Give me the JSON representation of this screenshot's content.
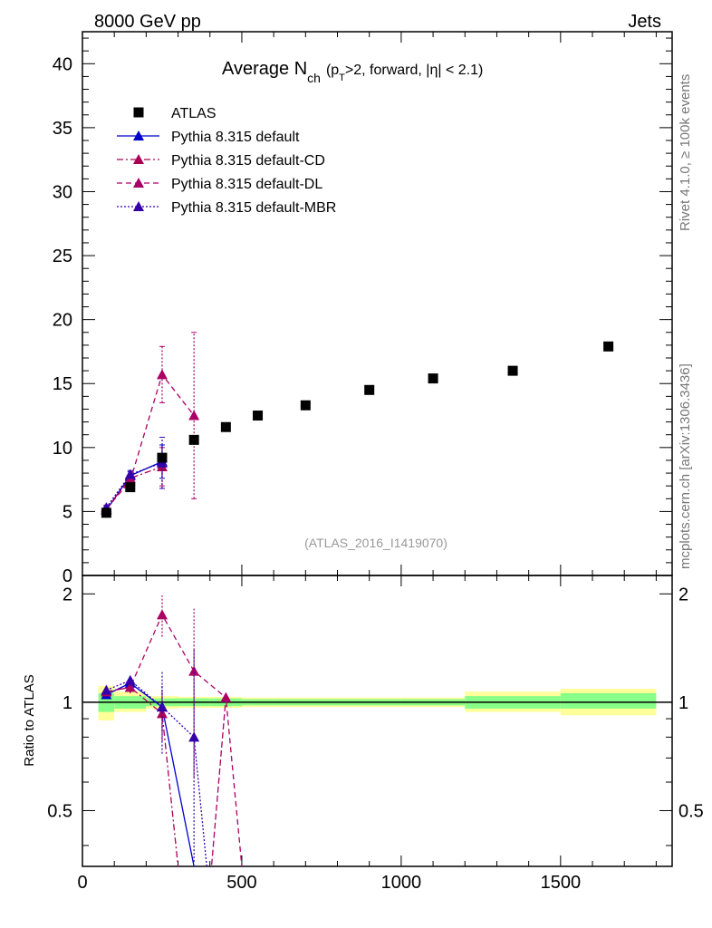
{
  "header": {
    "energy_label": "8000 GeV pp",
    "process_label": "Jets",
    "rivet_label": "Rivet 4.1.0, ≥ 100k events",
    "source_label": "mcplots.cern.ch [arXiv:1306.3436]"
  },
  "colors": {
    "atlas": "#000000",
    "default": "#0000cc",
    "cd": "#aa0055",
    "dl": "#aa0066",
    "mbr": "#3300aa",
    "band_inner": "#88ff88",
    "band_outer": "#ffff99"
  },
  "chart_data": {
    "type": "scatter",
    "title": "Average N_ch (p_T>2, forward, |η| < 2.1)",
    "title_main": "Average N",
    "title_sub_ch": "ch",
    "title_p": "(p",
    "title_sub_T": "T",
    "title_rest": ">2, forward, |η| < 2.1)",
    "analysis_id": "(ATLAS_2016_I1419070)",
    "xlabel": "",
    "ylabel_main": "",
    "ylabel_ratio": "Ratio to ATLAS",
    "xlim": [
      0,
      1850
    ],
    "ylim_main": [
      0,
      42.5
    ],
    "ylim_ratio": [
      0.35,
      2.25
    ],
    "x_ticks": [
      0,
      500,
      1000,
      1500
    ],
    "x_tick_labels": [
      "0",
      "500",
      "1000",
      "1500"
    ],
    "y_ticks_main": [
      0,
      5,
      10,
      15,
      20,
      25,
      30,
      35,
      40
    ],
    "y_tick_labels_main": [
      "0",
      "5",
      "10",
      "15",
      "20",
      "25",
      "30",
      "35",
      "40"
    ],
    "y_ticks_ratio": [
      0.5,
      1,
      2
    ],
    "y_tick_labels_ratio": [
      "0.5",
      "1",
      "2"
    ],
    "reference": {
      "name": "ATLAS",
      "x": [
        75,
        150,
        250,
        350,
        450,
        550,
        700,
        900,
        1100,
        1350,
        1650
      ],
      "y": [
        4.9,
        6.9,
        9.2,
        10.6,
        11.6,
        12.5,
        13.3,
        14.5,
        15.4,
        16.0,
        17.9
      ],
      "bins": [
        [
          50,
          100
        ],
        [
          100,
          200
        ],
        [
          200,
          300
        ],
        [
          300,
          400
        ],
        [
          400,
          500
        ],
        [
          500,
          600
        ],
        [
          600,
          800
        ],
        [
          800,
          1000
        ],
        [
          1000,
          1200
        ],
        [
          1200,
          1500
        ],
        [
          1500,
          1800
        ]
      ],
      "ratio_band_inner": [
        [
          0.94,
          1.06
        ],
        [
          0.96,
          1.04
        ],
        [
          0.975,
          1.025
        ],
        [
          0.975,
          1.025
        ],
        [
          0.975,
          1.025
        ],
        [
          0.98,
          1.02
        ],
        [
          0.98,
          1.02
        ],
        [
          0.98,
          1.02
        ],
        [
          0.98,
          1.02
        ],
        [
          0.96,
          1.04
        ],
        [
          0.96,
          1.06
        ]
      ],
      "ratio_band_outer": [
        [
          0.89,
          1.11
        ],
        [
          0.94,
          1.07
        ],
        [
          0.96,
          1.04
        ],
        [
          0.965,
          1.035
        ],
        [
          0.965,
          1.035
        ],
        [
          0.97,
          1.03
        ],
        [
          0.97,
          1.03
        ],
        [
          0.97,
          1.03
        ],
        [
          0.97,
          1.03
        ],
        [
          0.94,
          1.07
        ],
        [
          0.92,
          1.09
        ]
      ]
    },
    "series": [
      {
        "name": "Pythia 8.315 default",
        "color_key": "default",
        "dash": "solid",
        "x": [
          75,
          150,
          250
        ],
        "y": [
          5.1,
          7.8,
          8.9
        ],
        "yerr": [
          0.2,
          0.3,
          1.3
        ],
        "ratio": [
          1.05,
          1.13,
          0.97
        ],
        "ratio_err": [
          0.03,
          0.04,
          0.14
        ],
        "ratio_tail": [
          [
            350,
            0.35
          ]
        ]
      },
      {
        "name": "Pythia 8.315 default-CD",
        "color_key": "cd",
        "dash": "dashdot",
        "x": [
          75,
          150,
          250
        ],
        "y": [
          5.2,
          7.6,
          8.5
        ],
        "yerr": [
          0.2,
          0.3,
          1.5
        ],
        "ratio": [
          1.07,
          1.1,
          0.93
        ],
        "ratio_err": [
          0.03,
          0.04,
          0.15
        ],
        "ratio_tail": [
          [
            300,
            0.35
          ]
        ]
      },
      {
        "name": "Pythia 8.315 default-DL",
        "color_key": "dl",
        "dash": "dashed",
        "x": [
          75,
          150,
          250,
          350
        ],
        "y": [
          5.2,
          7.4,
          15.7,
          12.5
        ],
        "yerr": [
          0.2,
          0.3,
          2.2,
          6.5
        ],
        "ratio": [
          1.07,
          1.1,
          1.75,
          1.22,
          1.03
        ],
        "ratio_x": [
          75,
          150,
          250,
          350,
          450
        ],
        "ratio_err": [
          0.03,
          0.04,
          0.23,
          0.6,
          0.0
        ],
        "ratio_tail": [
          [
            405,
            0.35
          ],
          [
            450,
            1.03
          ],
          [
            500,
            0.35
          ]
        ]
      },
      {
        "name": "Pythia 8.315 default-MBR",
        "color_key": "mbr",
        "dash": "dotted",
        "x": [
          75,
          150,
          250
        ],
        "y": [
          5.3,
          7.9,
          8.8
        ],
        "yerr": [
          0.2,
          0.3,
          2.0
        ],
        "ratio": [
          1.08,
          1.15,
          0.97
        ],
        "ratio_err": [
          0.03,
          0.04,
          0.25
        ],
        "ratio_x2": [
          350
        ],
        "ratio2": [
          0.8
        ],
        "ratio2_err": [
          0.6
        ],
        "ratio_tail": [
          [
            390,
            0.35
          ]
        ]
      }
    ],
    "legend_position": "top-left"
  }
}
